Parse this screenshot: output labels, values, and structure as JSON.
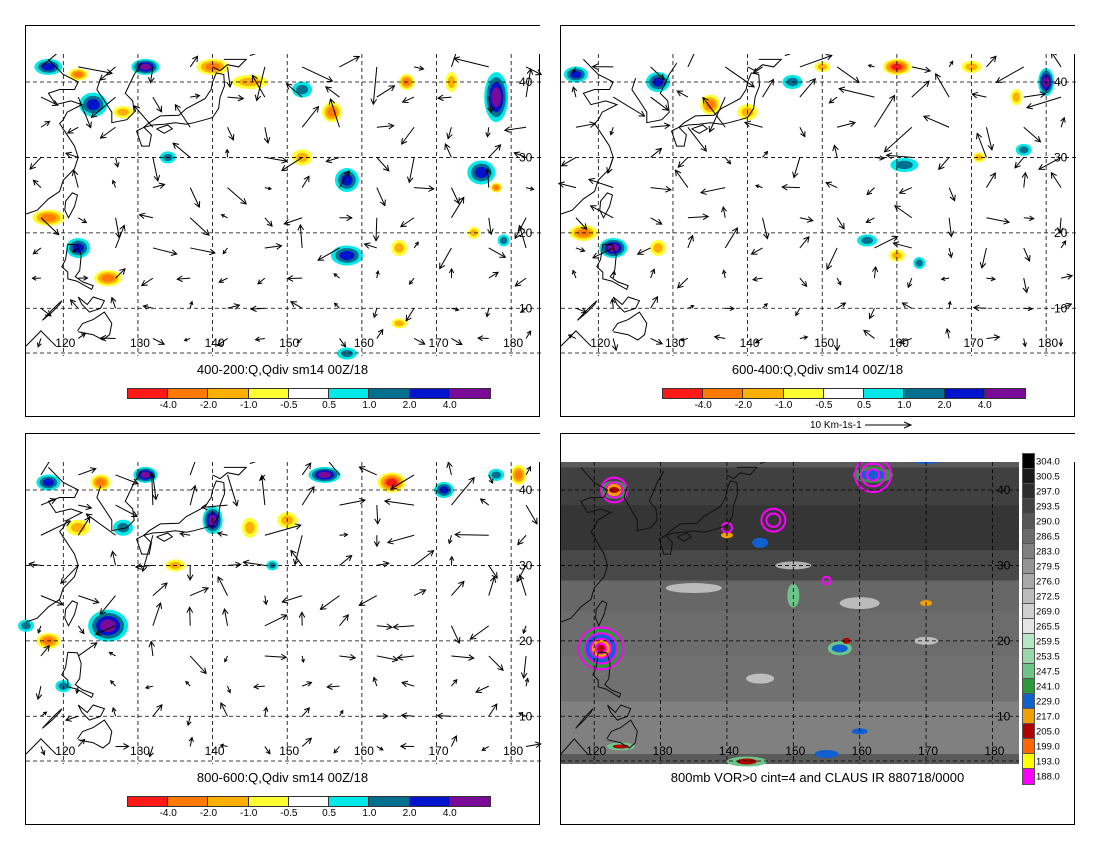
{
  "colorbar": {
    "colors": [
      "#ff1a1a",
      "#ff7a00",
      "#ffb000",
      "#ffff33",
      "#ffffff",
      "#00e8e8",
      "#00708f",
      "#0012cc",
      "#7a0a98"
    ],
    "labels": [
      "-4.0",
      "-2.0",
      "-1.0",
      "-0.5",
      "0.5",
      "1.0",
      "2.0",
      "4.0"
    ]
  },
  "vector_scale_label": "10 Km-1s-1",
  "panels": [
    {
      "title": "400-200:Q,Qdiv sm14 00Z/18",
      "lon_labels": [
        "120",
        "130",
        "140",
        "150",
        "160",
        "170",
        "180"
      ],
      "lat_labels": [
        "40",
        "30",
        "20",
        "10"
      ]
    },
    {
      "title": "600-400:Q,Qdiv sm14 00Z/18",
      "lon_labels": [
        "120",
        "130",
        "140",
        "150",
        "160",
        "170",
        "180"
      ],
      "lat_labels": [
        "40",
        "30",
        "20",
        "10"
      ]
    },
    {
      "title": "800-600:Q,Qdiv sm14 00Z/18",
      "lon_labels": [
        "120",
        "130",
        "140",
        "150",
        "160",
        "170",
        "180"
      ],
      "lat_labels": [
        "40",
        "30",
        "20",
        "10"
      ]
    },
    {
      "title": "800mb VOR>0 cint=4 and CLAUS IR 880718/0000",
      "lon_labels": [
        "120",
        "130",
        "140",
        "150",
        "160",
        "170",
        "180"
      ],
      "lat_labels": [
        "40",
        "30",
        "20",
        "10"
      ],
      "ir_scale": {
        "labels": [
          "304.0",
          "300.5",
          "297.0",
          "293.5",
          "290.0",
          "286.5",
          "283.0",
          "279.5",
          "276.0",
          "272.5",
          "269.0",
          "265.5",
          "259.5",
          "253.5",
          "247.5",
          "241.0",
          "229.0",
          "217.0",
          "205.0",
          "199.0",
          "193.0",
          "188.0"
        ],
        "colors": [
          "#000000",
          "#1a1a1a",
          "#2e2e2e",
          "#424242",
          "#575757",
          "#6b6b6b",
          "#808080",
          "#949494",
          "#a8a8a8",
          "#bcbcbc",
          "#d0d0d0",
          "#e4e4e4",
          "#b6e6c4",
          "#98d8a8",
          "#6cc48a",
          "#2a9a3a",
          "#1060d0",
          "#f0a000",
          "#b00000",
          "#ff6600",
          "#ffff00",
          "#ff00ff"
        ]
      }
    }
  ]
}
